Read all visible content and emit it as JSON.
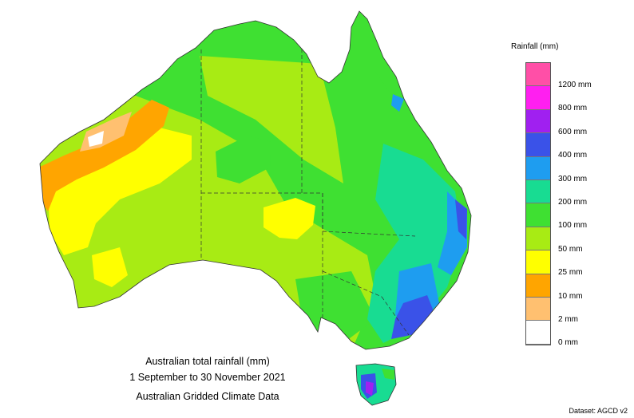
{
  "title_lines": [
    "Australian total rainfall (mm)",
    "1 September to 30 November 2021",
    "Australian Gridded Climate Data"
  ],
  "legend": {
    "title": "Rainfall (mm)",
    "bins": [
      {
        "color": "#ff4fa7"
      },
      {
        "color": "#ff1ff0"
      },
      {
        "color": "#a020f0"
      },
      {
        "color": "#3a52e8"
      },
      {
        "color": "#1e9df0"
      },
      {
        "color": "#18dc92"
      },
      {
        "color": "#3fe032"
      },
      {
        "color": "#a8eb14"
      },
      {
        "color": "#ffff00"
      },
      {
        "color": "#ffa500"
      },
      {
        "color": "#ffc070"
      },
      {
        "color": "#ffffff"
      }
    ],
    "labels": [
      "1200 mm",
      "800 mm",
      "600 mm",
      "400 mm",
      "300 mm",
      "200 mm",
      "100 mm",
      "50 mm",
      "25 mm",
      "10 mm",
      "2 mm",
      "0 mm"
    ]
  },
  "dataset_note": "Dataset: AGCD v2"
}
